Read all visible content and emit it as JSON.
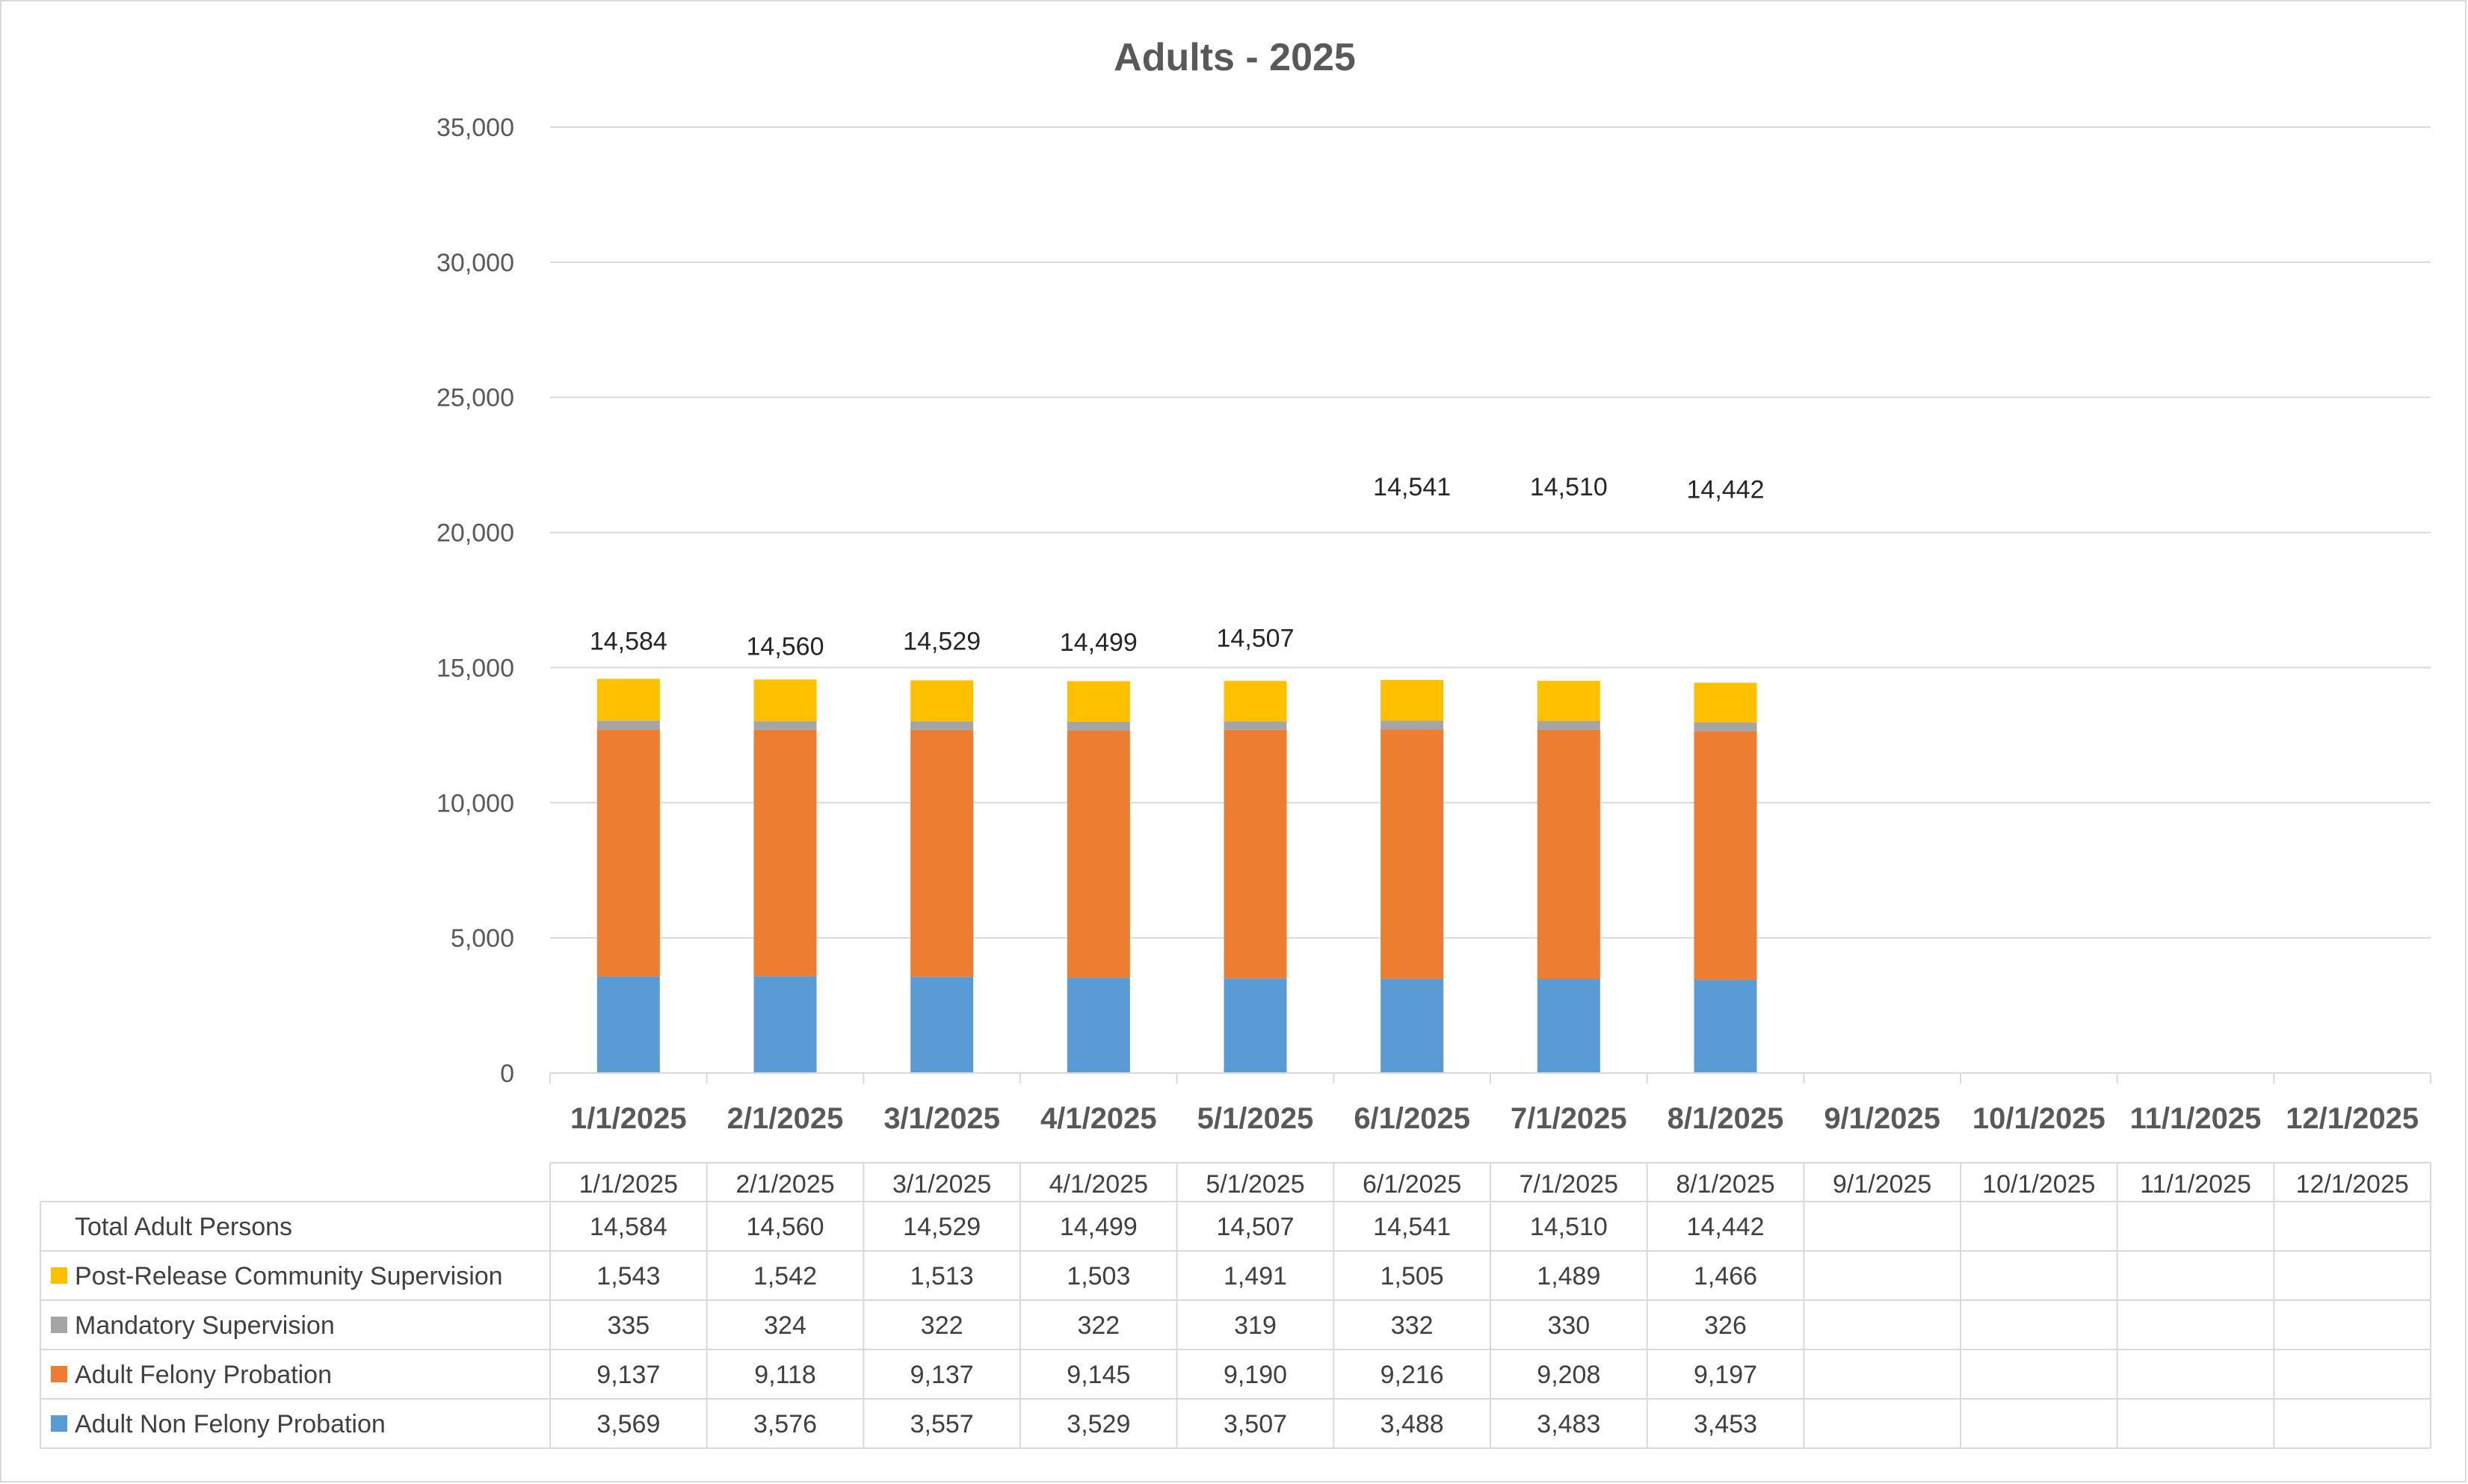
{
  "chart_data": {
    "type": "bar",
    "stacked": true,
    "title": "Adults - 2025",
    "xlabel": "",
    "ylabel": "",
    "ylim": [
      0,
      35000
    ],
    "y_ticks": [
      "0",
      "5,000",
      "10,000",
      "15,000",
      "20,000",
      "25,000",
      "30,000",
      "35,000"
    ],
    "y_tick_values": [
      0,
      5000,
      10000,
      15000,
      20000,
      25000,
      30000,
      35000
    ],
    "grid": true,
    "legend": "data-table",
    "categories": [
      "1/1/2025",
      "2/1/2025",
      "3/1/2025",
      "4/1/2025",
      "5/1/2025",
      "6/1/2025",
      "7/1/2025",
      "8/1/2025",
      "9/1/2025",
      "10/1/2025",
      "11/1/2025",
      "12/1/2025"
    ],
    "totals_label": "Total Adult Persons",
    "totals": [
      14584,
      14560,
      14529,
      14499,
      14507,
      14541,
      14510,
      14442,
      null,
      null,
      null,
      null
    ],
    "totals_text": [
      "14,584",
      "14,560",
      "14,529",
      "14,499",
      "14,507",
      "14,541",
      "14,510",
      "14,442",
      "",
      "",
      "",
      ""
    ],
    "total_label_values": [
      16000,
      15800,
      16000,
      15950,
      16100,
      21700,
      21700,
      21600,
      null,
      null,
      null,
      null
    ],
    "series": [
      {
        "name": "Adult Non Felony Probation",
        "color": "#5b9bd5",
        "values": [
          3569,
          3576,
          3557,
          3529,
          3507,
          3488,
          3483,
          3453,
          null,
          null,
          null,
          null
        ],
        "text": [
          "3,569",
          "3,576",
          "3,557",
          "3,529",
          "3,507",
          "3,488",
          "3,483",
          "3,453",
          "",
          "",
          "",
          ""
        ]
      },
      {
        "name": "Adult Felony Probation",
        "color": "#ed7d31",
        "values": [
          9137,
          9118,
          9137,
          9145,
          9190,
          9216,
          9208,
          9197,
          null,
          null,
          null,
          null
        ],
        "text": [
          "9,137",
          "9,118",
          "9,137",
          "9,145",
          "9,190",
          "9,216",
          "9,208",
          "9,197",
          "",
          "",
          "",
          ""
        ]
      },
      {
        "name": "Mandatory Supervision",
        "color": "#a5a5a5",
        "values": [
          335,
          324,
          322,
          322,
          319,
          332,
          330,
          326,
          null,
          null,
          null,
          null
        ],
        "text": [
          "335",
          "324",
          "322",
          "322",
          "319",
          "332",
          "330",
          "326",
          "",
          "",
          "",
          ""
        ]
      },
      {
        "name": "Post-Release Community Supervision",
        "color": "#ffc000",
        "values": [
          1543,
          1542,
          1513,
          1503,
          1491,
          1505,
          1489,
          1466,
          null,
          null,
          null,
          null
        ],
        "text": [
          "1,543",
          "1,542",
          "1,513",
          "1,503",
          "1,491",
          "1,505",
          "1,489",
          "1,466",
          "",
          "",
          "",
          ""
        ]
      }
    ],
    "table_row_order": [
      "Post-Release Community Supervision",
      "Mandatory Supervision",
      "Adult Felony Probation",
      "Adult Non Felony Probation"
    ],
    "colors": {
      "gridline": "#d9d9d9",
      "axis_text": "#595959",
      "table_border": "#d9d9d9"
    }
  }
}
